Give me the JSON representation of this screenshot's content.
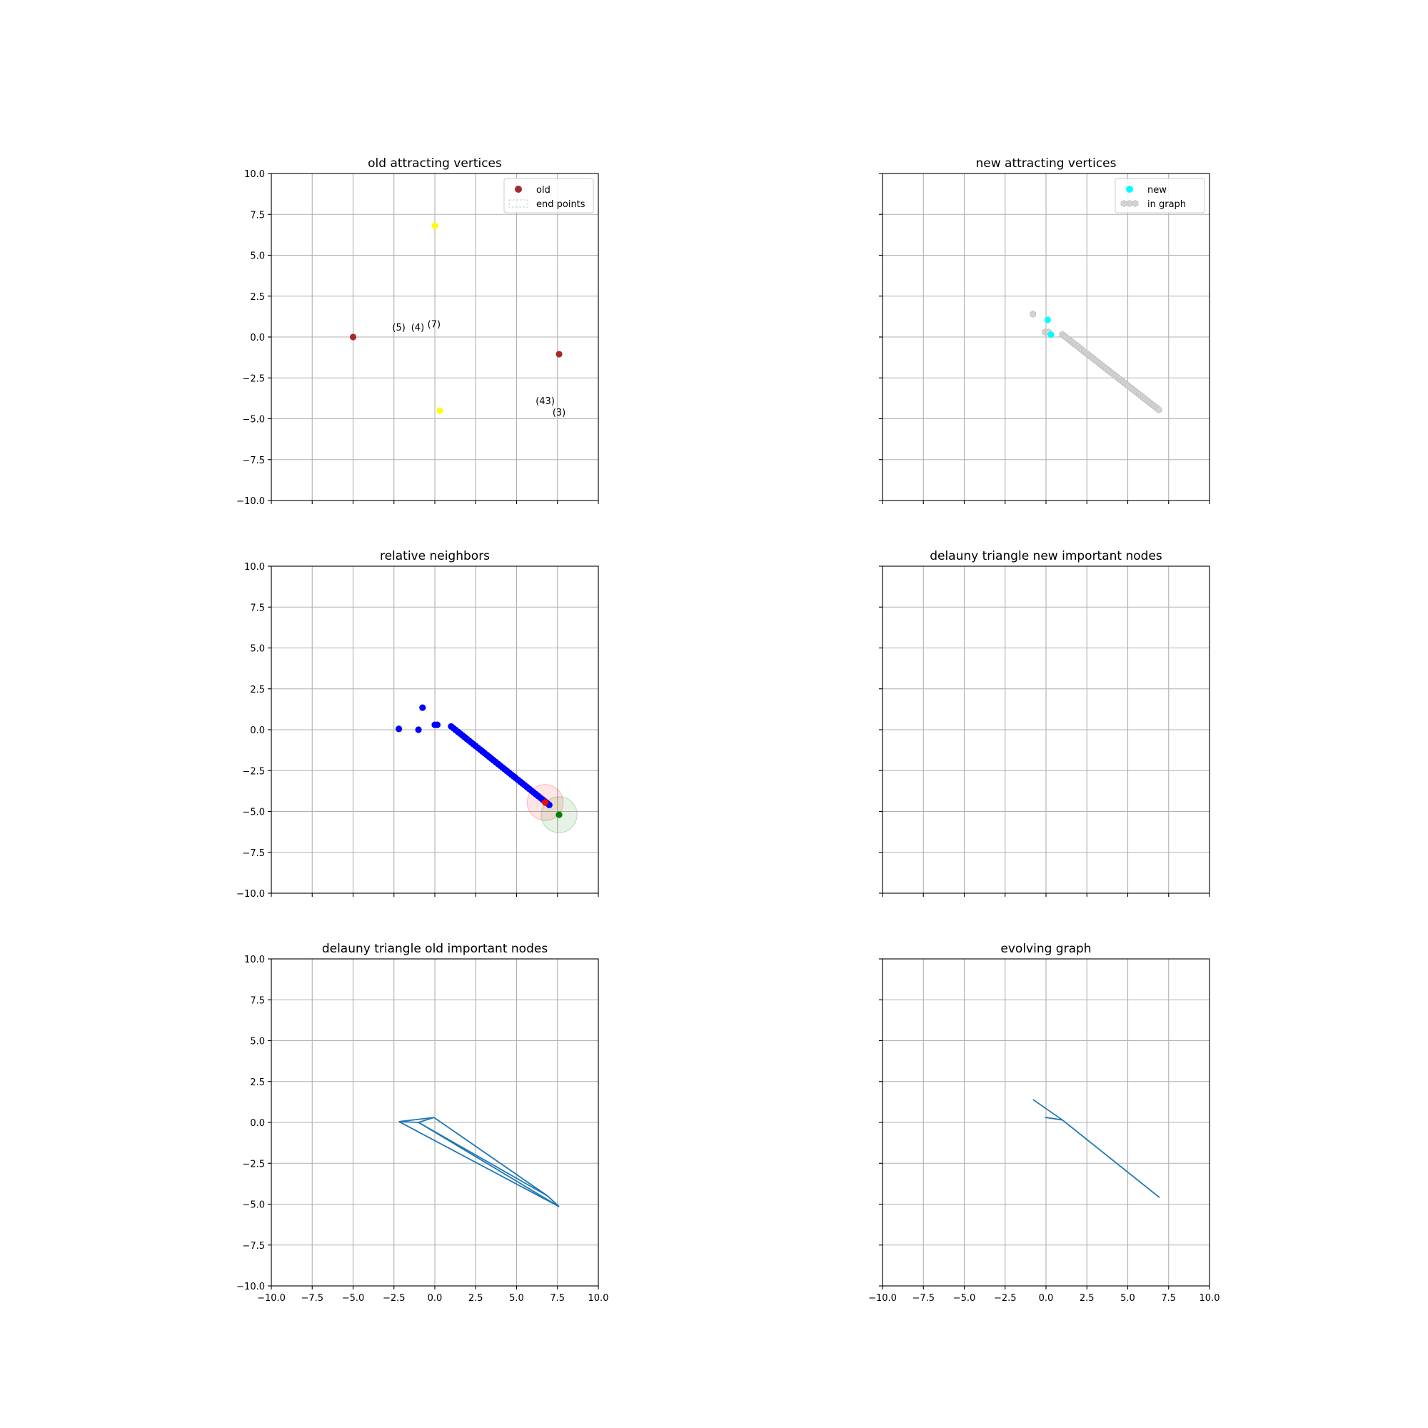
{
  "figure": {
    "axis_ticks": [
      -10.0,
      -7.5,
      -5.0,
      -2.5,
      0.0,
      2.5,
      5.0,
      7.5,
      10.0
    ],
    "tick_labels": [
      "−10.0",
      "−7.5",
      "−5.0",
      "−2.5",
      "0.0",
      "2.5",
      "5.0",
      "7.5",
      "10.0"
    ],
    "xlim": [
      -10,
      10
    ],
    "ylim": [
      -10,
      10
    ],
    "grid": true,
    "layout": "3 rows x 2 columns, shared x and y axes"
  },
  "chart_data": [
    {
      "type": "scatter",
      "title": "old attracting vertices",
      "show_y_labels": true,
      "show_x_labels": false,
      "legend": {
        "placement": "upper right",
        "entries": [
          {
            "label": "old",
            "marker": "dot",
            "color": "#a52a2a"
          },
          {
            "label": "end points",
            "marker": "dashed-box",
            "color": "#cccccc"
          }
        ]
      },
      "series": [
        {
          "name": "old",
          "color": "#a52a2a",
          "points": [
            [
              -5.0,
              0.0
            ],
            [
              7.6,
              -1.05
            ]
          ]
        },
        {
          "color": "#ffff00",
          "points": [
            [
              0.0,
              6.8
            ],
            [
              0.3,
              -4.5
            ]
          ]
        }
      ],
      "annotations": [
        {
          "text": "(5)",
          "x": -2.2,
          "y": 0.4
        },
        {
          "text": "(4)",
          "x": -1.05,
          "y": 0.4
        },
        {
          "text": "(7)",
          "x": -0.05,
          "y": 0.6
        },
        {
          "text": "(43)",
          "x": 6.75,
          "y": -4.1
        },
        {
          "text": "(3)",
          "x": 7.6,
          "y": -4.8
        }
      ]
    },
    {
      "type": "scatter",
      "title": "new attracting vertices",
      "show_y_labels": false,
      "show_x_labels": false,
      "legend": {
        "placement": "upper right",
        "entries": [
          {
            "label": "new",
            "marker": "dot",
            "color": "#00ffff"
          },
          {
            "label": "in graph",
            "marker": "hexagons",
            "color": "#d3d3d3"
          }
        ]
      },
      "series": [
        {
          "name": "in graph",
          "color": "#d3d3d3",
          "marker": "hexagon",
          "points": [
            [
              -0.8,
              1.4
            ],
            [
              -0.05,
              0.3
            ],
            [
              0.15,
              0.3
            ]
          ],
          "line_segment": {
            "from": [
              1.0,
              0.15
            ],
            "to": [
              6.9,
              -4.45
            ],
            "count": 45
          }
        },
        {
          "name": "new",
          "color": "#00ffff",
          "points": [
            [
              0.1,
              1.05
            ],
            [
              0.3,
              0.15
            ]
          ]
        }
      ]
    },
    {
      "type": "scatter",
      "title": "relative neighbors",
      "show_y_labels": true,
      "show_x_labels": false,
      "series": [
        {
          "color": "#0000ff",
          "points": [
            [
              -2.2,
              0.05
            ],
            [
              -1.0,
              0.0
            ],
            [
              -0.75,
              1.35
            ],
            [
              0.0,
              0.3
            ],
            [
              0.15,
              0.3
            ]
          ],
          "line_segment": {
            "from": [
              1.0,
              0.2
            ],
            "to": [
              7.0,
              -4.6
            ],
            "count": 45
          }
        },
        {
          "color": "#ff0000",
          "points": [
            [
              6.75,
              -4.45
            ]
          ]
        },
        {
          "color": "#008000",
          "points": [
            [
              7.6,
              -5.2
            ]
          ]
        }
      ],
      "circles": [
        {
          "cx": 6.75,
          "cy": -4.45,
          "r": 1.1,
          "color": "#ff0000"
        },
        {
          "cx": 7.6,
          "cy": -5.2,
          "r": 1.1,
          "color": "#008000"
        }
      ]
    },
    {
      "type": "line",
      "title": "delauny triangle new important nodes",
      "show_y_labels": false,
      "show_x_labels": false,
      "series": []
    },
    {
      "type": "line",
      "title": "delauny triangle old important nodes",
      "show_y_labels": true,
      "show_x_labels": true,
      "series": [
        {
          "color": "#1f77b4",
          "segments": [
            [
              [
                -2.2,
                0.05
              ],
              [
                -0.05,
                0.3
              ]
            ],
            [
              [
                -2.2,
                0.05
              ],
              [
                -1.0,
                0.0
              ]
            ],
            [
              [
                -1.0,
                0.0
              ],
              [
                -0.05,
                0.3
              ]
            ],
            [
              [
                -0.05,
                0.3
              ],
              [
                6.9,
                -4.5
              ]
            ],
            [
              [
                -1.0,
                0.0
              ],
              [
                6.9,
                -4.5
              ]
            ],
            [
              [
                -2.2,
                0.05
              ],
              [
                7.6,
                -5.15
              ]
            ],
            [
              [
                6.9,
                -4.5
              ],
              [
                7.6,
                -5.15
              ]
            ],
            [
              [
                -1.0,
                0.0
              ],
              [
                7.6,
                -5.15
              ]
            ]
          ]
        }
      ]
    },
    {
      "type": "line",
      "title": "evolving graph",
      "show_y_labels": false,
      "show_x_labels": true,
      "series": [
        {
          "color": "#1f77b4",
          "segments": [
            [
              [
                -0.8,
                1.4
              ],
              [
                1.0,
                0.15
              ]
            ],
            [
              [
                0.0,
                0.3
              ],
              [
                1.0,
                0.15
              ]
            ],
            [
              [
                1.0,
                0.15
              ],
              [
                6.95,
                -4.6
              ]
            ],
            [
              [
                -0.05,
                0.3
              ],
              [
                0.1,
                0.3
              ]
            ]
          ]
        }
      ]
    }
  ]
}
